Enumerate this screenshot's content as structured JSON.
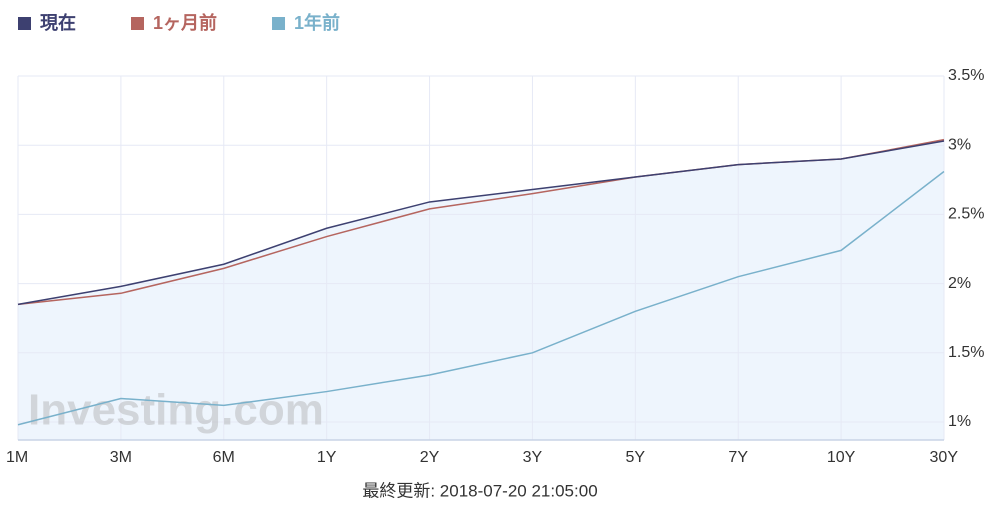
{
  "chart_data": {
    "type": "line",
    "categories": [
      "1M",
      "3M",
      "6M",
      "1Y",
      "2Y",
      "3Y",
      "5Y",
      "7Y",
      "10Y",
      "30Y"
    ],
    "series": [
      {
        "name": "現在",
        "color": "#3d4070",
        "values": [
          1.85,
          1.98,
          2.14,
          2.4,
          2.59,
          2.68,
          2.77,
          2.86,
          2.9,
          3.03
        ]
      },
      {
        "name": "1ヶ月前",
        "color": "#b5655f",
        "values": [
          1.85,
          1.93,
          2.11,
          2.34,
          2.54,
          2.65,
          2.77,
          2.86,
          2.9,
          3.04
        ]
      },
      {
        "name": "1年前",
        "color": "#79b1cb",
        "values": [
          0.98,
          1.17,
          1.12,
          1.22,
          1.34,
          1.5,
          1.8,
          2.05,
          2.24,
          2.81
        ]
      }
    ],
    "ylim": [
      0.87,
      3.5
    ],
    "yticks": [
      {
        "value": 1,
        "label": "1%"
      },
      {
        "value": 1.5,
        "label": "1.5%"
      },
      {
        "value": 2,
        "label": "2%"
      },
      {
        "value": 2.5,
        "label": "2.5%"
      },
      {
        "value": 3,
        "label": "3%"
      },
      {
        "value": 3.5,
        "label": "3.5%"
      }
    ],
    "grid": true,
    "area_fill": "#eef5fd",
    "watermark": "Investing.com",
    "footer": "最終更新: 2018-07-20 21:05:00"
  }
}
